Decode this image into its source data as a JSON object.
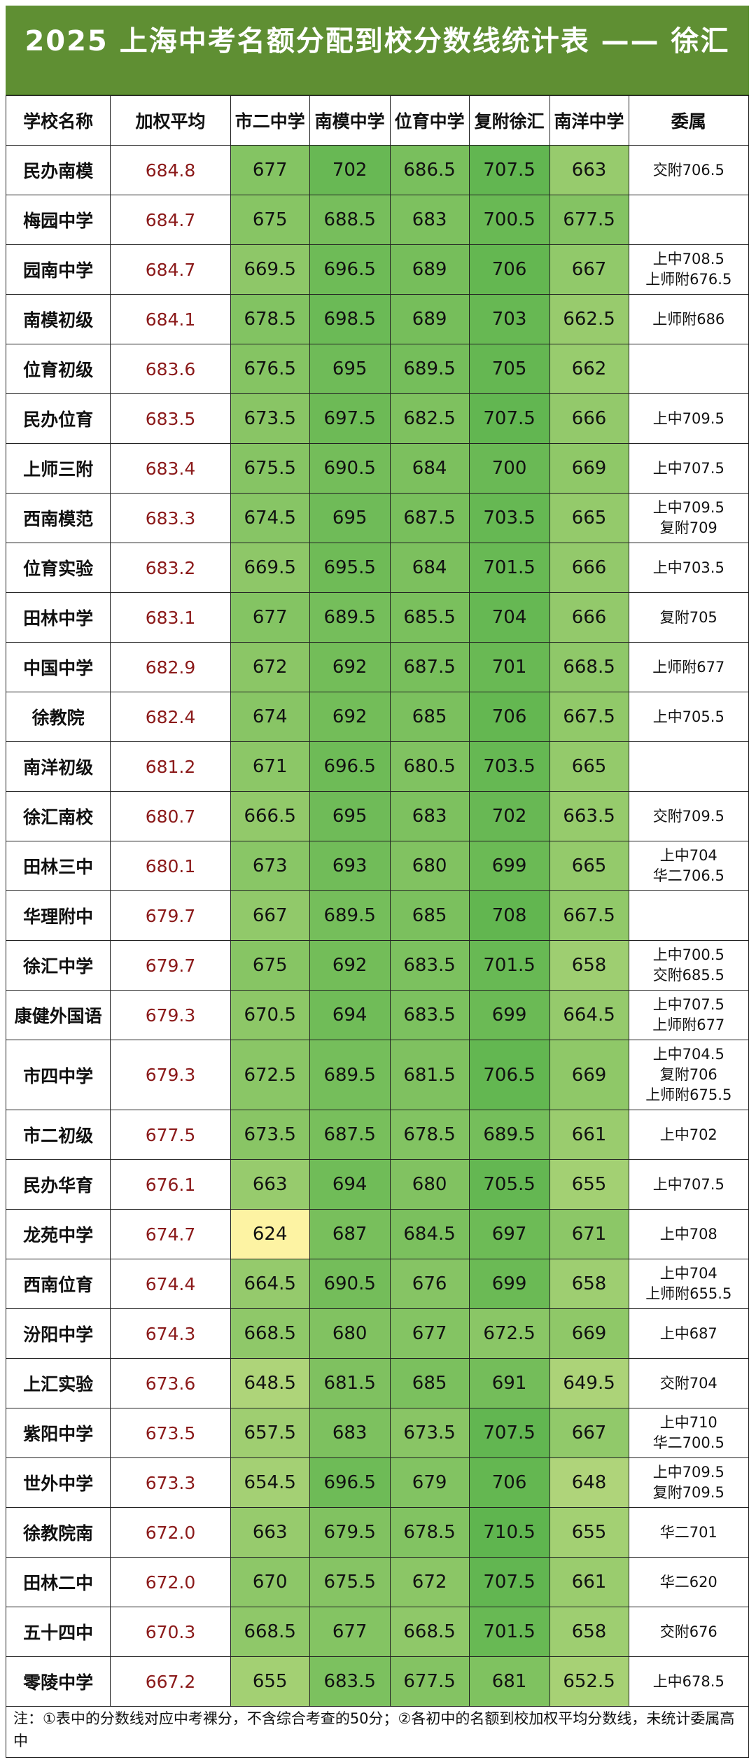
{
  "title": "2025 上海中考名额分配到校分数线统计表 —— 徐汇",
  "headers": [
    "学校名称",
    "加权平均",
    "市二中学",
    "南模中学",
    "位育中学",
    "复附徐汇",
    "南洋中学",
    "委属"
  ],
  "colors": {
    "title_bg": "#5f8f33",
    "avg_text": "#8b1a1a",
    "score_low": "#fdf3a3",
    "score_high": "#5fb54f"
  },
  "rows": [
    {
      "school": "民办南模",
      "avg": "684.8",
      "scores": [
        "677",
        "702",
        "686.5",
        "707.5",
        "663"
      ],
      "aff": [
        "交附706.5"
      ]
    },
    {
      "school": "梅园中学",
      "avg": "684.7",
      "scores": [
        "675",
        "688.5",
        "683",
        "700.5",
        "677.5"
      ],
      "aff": []
    },
    {
      "school": "园南中学",
      "avg": "684.7",
      "scores": [
        "669.5",
        "696.5",
        "689",
        "706",
        "667"
      ],
      "aff": [
        "上中708.5",
        "上师附676.5"
      ]
    },
    {
      "school": "南模初级",
      "avg": "684.1",
      "scores": [
        "678.5",
        "698.5",
        "689",
        "703",
        "662.5"
      ],
      "aff": [
        "上师附686"
      ]
    },
    {
      "school": "位育初级",
      "avg": "683.6",
      "scores": [
        "676.5",
        "695",
        "689.5",
        "705",
        "662"
      ],
      "aff": []
    },
    {
      "school": "民办位育",
      "avg": "683.5",
      "scores": [
        "673.5",
        "697.5",
        "682.5",
        "707.5",
        "666"
      ],
      "aff": [
        "上中709.5"
      ]
    },
    {
      "school": "上师三附",
      "avg": "683.4",
      "scores": [
        "675.5",
        "690.5",
        "684",
        "700",
        "669"
      ],
      "aff": [
        "上中707.5"
      ]
    },
    {
      "school": "西南模范",
      "avg": "683.3",
      "scores": [
        "674.5",
        "695",
        "687.5",
        "703.5",
        "665"
      ],
      "aff": [
        "上中709.5",
        "复附709"
      ]
    },
    {
      "school": "位育实验",
      "avg": "683.2",
      "scores": [
        "669.5",
        "695.5",
        "684",
        "701.5",
        "666"
      ],
      "aff": [
        "上中703.5"
      ]
    },
    {
      "school": "田林中学",
      "avg": "683.1",
      "scores": [
        "677",
        "689.5",
        "685.5",
        "704",
        "666"
      ],
      "aff": [
        "复附705"
      ]
    },
    {
      "school": "中国中学",
      "avg": "682.9",
      "scores": [
        "672",
        "692",
        "687.5",
        "701",
        "668.5"
      ],
      "aff": [
        "上师附677"
      ]
    },
    {
      "school": "徐教院",
      "avg": "682.4",
      "scores": [
        "674",
        "692",
        "685",
        "706",
        "667.5"
      ],
      "aff": [
        "上中705.5"
      ]
    },
    {
      "school": "南洋初级",
      "avg": "681.2",
      "scores": [
        "671",
        "696.5",
        "680.5",
        "703.5",
        "665"
      ],
      "aff": []
    },
    {
      "school": "徐汇南校",
      "avg": "680.7",
      "scores": [
        "666.5",
        "695",
        "683",
        "702",
        "663.5"
      ],
      "aff": [
        "交附709.5"
      ]
    },
    {
      "school": "田林三中",
      "avg": "680.1",
      "scores": [
        "673",
        "693",
        "680",
        "699",
        "665"
      ],
      "aff": [
        "上中704",
        "华二706.5"
      ]
    },
    {
      "school": "华理附中",
      "avg": "679.7",
      "scores": [
        "667",
        "689.5",
        "685",
        "708",
        "667.5"
      ],
      "aff": []
    },
    {
      "school": "徐汇中学",
      "avg": "679.7",
      "scores": [
        "675",
        "692",
        "683.5",
        "701.5",
        "658"
      ],
      "aff": [
        "上中700.5",
        "交附685.5"
      ]
    },
    {
      "school": "康健外国语",
      "avg": "679.3",
      "scores": [
        "670.5",
        "694",
        "683.5",
        "699",
        "664.5"
      ],
      "aff": [
        "上中707.5",
        "上师附677"
      ]
    },
    {
      "school": "市四中学",
      "avg": "679.3",
      "scores": [
        "672.5",
        "689.5",
        "681.5",
        "706.5",
        "669"
      ],
      "aff": [
        "上中704.5",
        "复附706",
        "上师附675.5"
      ]
    },
    {
      "school": "市二初级",
      "avg": "677.5",
      "scores": [
        "673.5",
        "687.5",
        "678.5",
        "689.5",
        "661"
      ],
      "aff": [
        "上中702"
      ]
    },
    {
      "school": "民办华育",
      "avg": "676.1",
      "scores": [
        "663",
        "694",
        "680",
        "705.5",
        "655"
      ],
      "aff": [
        "上中707.5"
      ]
    },
    {
      "school": "龙苑中学",
      "avg": "674.7",
      "scores": [
        "624",
        "687",
        "684.5",
        "697",
        "671"
      ],
      "aff": [
        "上中708"
      ]
    },
    {
      "school": "西南位育",
      "avg": "674.4",
      "scores": [
        "664.5",
        "690.5",
        "676",
        "699",
        "658"
      ],
      "aff": [
        "上中704",
        "上师附655.5"
      ]
    },
    {
      "school": "汾阳中学",
      "avg": "674.3",
      "scores": [
        "668.5",
        "680",
        "677",
        "672.5",
        "669"
      ],
      "aff": [
        "上中687"
      ]
    },
    {
      "school": "上汇实验",
      "avg": "673.6",
      "scores": [
        "648.5",
        "681.5",
        "685",
        "691",
        "649.5"
      ],
      "aff": [
        "交附704"
      ]
    },
    {
      "school": "紫阳中学",
      "avg": "673.5",
      "scores": [
        "657.5",
        "683",
        "673.5",
        "707.5",
        "667"
      ],
      "aff": [
        "上中710",
        "华二700.5"
      ]
    },
    {
      "school": "世外中学",
      "avg": "673.3",
      "scores": [
        "654.5",
        "696.5",
        "679",
        "706",
        "648"
      ],
      "aff": [
        "上中709.5",
        "复附709.5"
      ]
    },
    {
      "school": "徐教院南",
      "avg": "672.0",
      "scores": [
        "663",
        "679.5",
        "678.5",
        "710.5",
        "655"
      ],
      "aff": [
        "华二701"
      ]
    },
    {
      "school": "田林二中",
      "avg": "672.0",
      "scores": [
        "670",
        "675.5",
        "672",
        "707.5",
        "661"
      ],
      "aff": [
        "华二620"
      ]
    },
    {
      "school": "五十四中",
      "avg": "670.3",
      "scores": [
        "668.5",
        "677",
        "668.5",
        "701.5",
        "658"
      ],
      "aff": [
        "交附676"
      ]
    },
    {
      "school": "零陵中学",
      "avg": "667.2",
      "scores": [
        "655",
        "683.5",
        "677.5",
        "681",
        "652.5"
      ],
      "aff": [
        "上中678.5"
      ]
    }
  ],
  "note": "注：①表中的分数线对应中考裸分，不含综合考查的50分；②各初中的名额到校加权平均分数线，未统计委属高中"
}
